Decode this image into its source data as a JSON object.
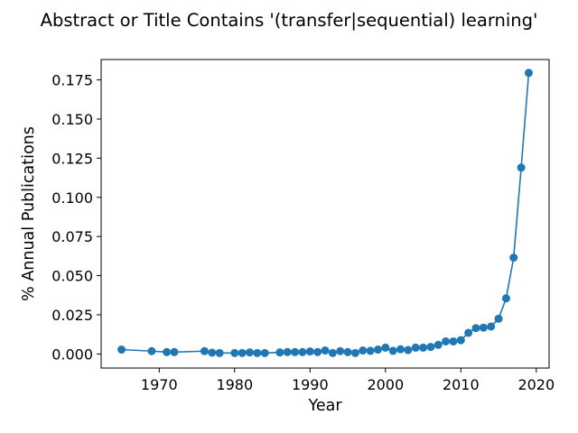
{
  "chart_data": {
    "type": "line",
    "title": "Abstract or Title Contains '(transfer|sequential) learning'",
    "xlabel": "Year",
    "ylabel": "% Annual Publications",
    "xlim": [
      1962.3,
      2021.7
    ],
    "ylim": [
      -0.009,
      0.188
    ],
    "xticks": [
      1970,
      1980,
      1990,
      2000,
      2010,
      2020
    ],
    "xtick_labels": [
      "1970",
      "1980",
      "1990",
      "2000",
      "2010",
      "2020"
    ],
    "yticks": [
      0.0,
      0.025,
      0.05,
      0.075,
      0.1,
      0.125,
      0.15,
      0.175
    ],
    "ytick_labels": [
      "0.000",
      "0.025",
      "0.050",
      "0.075",
      "0.100",
      "0.125",
      "0.150",
      "0.175"
    ],
    "grid": false,
    "marker": "circle",
    "color": "#1f77b4",
    "series": [
      {
        "x": [
          1965,
          1969,
          1971,
          1972,
          1976,
          1977,
          1978,
          1980,
          1981,
          1982,
          1983,
          1984,
          1986,
          1987,
          1988,
          1989,
          1990,
          1991,
          1992,
          1993,
          1994,
          1995,
          1996,
          1997,
          1998,
          1999,
          2000,
          2001,
          2002,
          2003,
          2004,
          2005,
          2006,
          2007,
          2008,
          2009,
          2010,
          2011,
          2012,
          2013,
          2014,
          2015,
          2016,
          2017,
          2018,
          2019
        ],
        "values": [
          0.0028,
          0.0018,
          0.0012,
          0.0012,
          0.0018,
          0.0008,
          0.0006,
          0.0006,
          0.0006,
          0.001,
          0.0006,
          0.0006,
          0.001,
          0.0012,
          0.0012,
          0.0012,
          0.0016,
          0.0012,
          0.0022,
          0.0006,
          0.0018,
          0.0012,
          0.0006,
          0.0022,
          0.002,
          0.0028,
          0.004,
          0.002,
          0.003,
          0.0025,
          0.004,
          0.004,
          0.0045,
          0.0058,
          0.008,
          0.008,
          0.0088,
          0.0135,
          0.0165,
          0.0168,
          0.0175,
          0.0225,
          0.0355,
          0.0615,
          0.119,
          0.1795
        ]
      }
    ]
  }
}
